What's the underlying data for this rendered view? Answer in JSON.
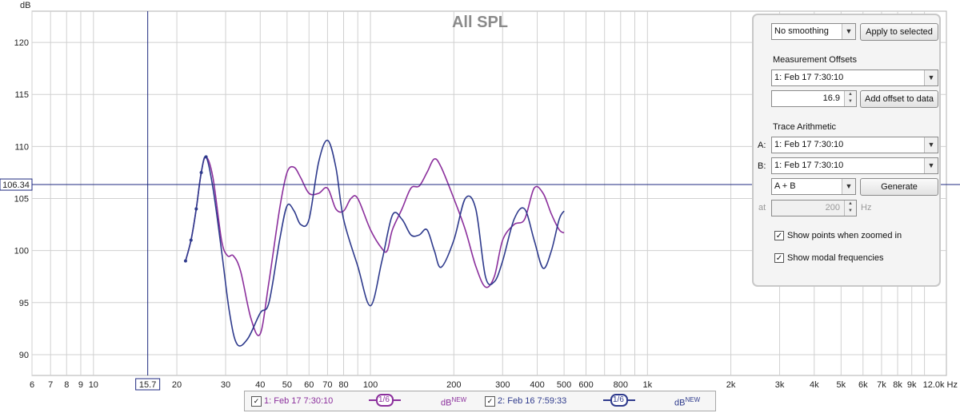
{
  "chart_data": {
    "type": "line",
    "title": "All SPL",
    "ylabel": "dB",
    "xlabel": "",
    "x_unit": "Hz",
    "x_scale": "log",
    "xlim": [
      6,
      12000
    ],
    "ylim": [
      88,
      123
    ],
    "y_ticks": [
      90,
      95,
      100,
      105,
      110,
      115,
      120
    ],
    "x_tick_labels": [
      {
        "f": 6,
        "t": "6"
      },
      {
        "f": 7,
        "t": "7"
      },
      {
        "f": 8,
        "t": "8"
      },
      {
        "f": 9,
        "t": "9"
      },
      {
        "f": 10,
        "t": "10"
      },
      {
        "f": 20,
        "t": "20"
      },
      {
        "f": 30,
        "t": "30"
      },
      {
        "f": 40,
        "t": "40"
      },
      {
        "f": 50,
        "t": "50"
      },
      {
        "f": 60,
        "t": "60"
      },
      {
        "f": 70,
        "t": "70"
      },
      {
        "f": 80,
        "t": "80"
      },
      {
        "f": 100,
        "t": "100"
      },
      {
        "f": 200,
        "t": "200"
      },
      {
        "f": 300,
        "t": "300"
      },
      {
        "f": 400,
        "t": "400"
      },
      {
        "f": 500,
        "t": "500"
      },
      {
        "f": 600,
        "t": "600"
      },
      {
        "f": 800,
        "t": "800"
      },
      {
        "f": 1000,
        "t": "1k"
      },
      {
        "f": 2000,
        "t": "2k"
      },
      {
        "f": 3000,
        "t": "3k"
      },
      {
        "f": 4000,
        "t": "4k"
      },
      {
        "f": 5000,
        "t": "5k"
      },
      {
        "f": 6000,
        "t": "6k"
      },
      {
        "f": 7000,
        "t": "7k"
      },
      {
        "f": 8000,
        "t": "8k"
      },
      {
        "f": 9000,
        "t": "9k"
      },
      {
        "f": 12000,
        "t": "12.0k Hz"
      }
    ],
    "cursor": {
      "x": 15.7,
      "y": 106.34,
      "x_label": "15.7",
      "y_label": "106.34"
    },
    "series": [
      {
        "name": "1: Feb 17 7:30:10",
        "color": "#8b2f9c",
        "points": [
          [
            21.5,
            99
          ],
          [
            22.5,
            101
          ],
          [
            23.5,
            104
          ],
          [
            24.5,
            107.5
          ],
          [
            25.5,
            109
          ],
          [
            27,
            107
          ],
          [
            29,
            101
          ],
          [
            30.5,
            99.5
          ],
          [
            32,
            99.5
          ],
          [
            34,
            98
          ],
          [
            37,
            93.5
          ],
          [
            40,
            92
          ],
          [
            43,
            97
          ],
          [
            47,
            104
          ],
          [
            50,
            107.5
          ],
          [
            53,
            108
          ],
          [
            56,
            107
          ],
          [
            60,
            105.5
          ],
          [
            65,
            105.5
          ],
          [
            70,
            106
          ],
          [
            75,
            104
          ],
          [
            80,
            103.8
          ],
          [
            85,
            105
          ],
          [
            90,
            105
          ],
          [
            100,
            102
          ],
          [
            110,
            100.2
          ],
          [
            115,
            100
          ],
          [
            120,
            102
          ],
          [
            130,
            104
          ],
          [
            140,
            106
          ],
          [
            150,
            106.2
          ],
          [
            160,
            107.5
          ],
          [
            170,
            108.8
          ],
          [
            180,
            108
          ],
          [
            200,
            105
          ],
          [
            220,
            102
          ],
          [
            240,
            98.5
          ],
          [
            260,
            96.5
          ],
          [
            280,
            97.5
          ],
          [
            300,
            101
          ],
          [
            330,
            102.5
          ],
          [
            360,
            103
          ],
          [
            390,
            106
          ],
          [
            420,
            105.5
          ],
          [
            450,
            103.5
          ],
          [
            480,
            102
          ],
          [
            500,
            101.7
          ]
        ]
      },
      {
        "name": "2: Feb 16 7:59:33",
        "color": "#2e3a8c",
        "points": [
          [
            21.5,
            99
          ],
          [
            22.5,
            101
          ],
          [
            23.5,
            104
          ],
          [
            24.5,
            107.5
          ],
          [
            25.5,
            109
          ],
          [
            27,
            106
          ],
          [
            29,
            100
          ],
          [
            31,
            94
          ],
          [
            33,
            91
          ],
          [
            36,
            91.5
          ],
          [
            40,
            94
          ],
          [
            43,
            95
          ],
          [
            47,
            101
          ],
          [
            50,
            104.3
          ],
          [
            53,
            103.8
          ],
          [
            56,
            102.5
          ],
          [
            60,
            103
          ],
          [
            65,
            108.5
          ],
          [
            70,
            110.6
          ],
          [
            75,
            108
          ],
          [
            80,
            103
          ],
          [
            90,
            98.5
          ],
          [
            100,
            94.7
          ],
          [
            110,
            99
          ],
          [
            120,
            103.4
          ],
          [
            130,
            103
          ],
          [
            140,
            101.5
          ],
          [
            150,
            101.5
          ],
          [
            160,
            102
          ],
          [
            170,
            100
          ],
          [
            180,
            98.4
          ],
          [
            200,
            101
          ],
          [
            220,
            105
          ],
          [
            240,
            104
          ],
          [
            260,
            97.5
          ],
          [
            280,
            97
          ],
          [
            300,
            99
          ],
          [
            330,
            103
          ],
          [
            360,
            104
          ],
          [
            390,
            101
          ],
          [
            420,
            98.3
          ],
          [
            450,
            100
          ],
          [
            480,
            103
          ],
          [
            500,
            103.8
          ]
        ]
      }
    ]
  },
  "panel": {
    "smoothing_value": "No  smoothing",
    "apply_button": "Apply to selected",
    "offsets_label": "Measurement Offsets",
    "offsets_select": "1: Feb 17 7:30:10",
    "offset_value": "16.9",
    "add_offset_button": "Add offset to data",
    "arith_label": "Trace Arithmetic",
    "a_label": "A:",
    "a_value": "1: Feb 17 7:30:10",
    "b_label": "B:",
    "b_value": "1: Feb 17 7:30:10",
    "op_value": "A + B",
    "generate_button": "Generate",
    "at_label": "at",
    "at_value": "200",
    "hz_label": "Hz",
    "show_points_label": "Show points when zoomed in",
    "show_modal_label": "Show modal frequencies"
  },
  "legend": {
    "item1_name": "1: Feb 17 7:30:10",
    "item1_smoothing": "1/6",
    "item1_unit": "dB",
    "item1_tag": "NEW",
    "item2_name": "2: Feb 16 7:59:33",
    "item2_smoothing": "1/6",
    "item2_unit": "dB",
    "item2_tag": "NEW"
  },
  "colors": {
    "series1": "#8b2f9c",
    "series2": "#2e3a8c",
    "cursor": "#1f2a80",
    "grid": "#d0d0d0"
  }
}
